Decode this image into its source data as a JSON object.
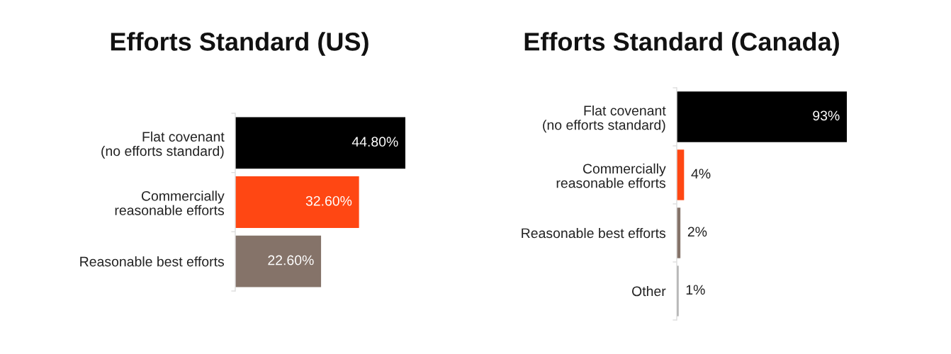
{
  "chart_data": [
    {
      "type": "bar",
      "orientation": "horizontal",
      "title": "Efforts Standard (US)",
      "categories": [
        "Flat covenant\n(no efforts standard)",
        "Commercially\nreasonable efforts",
        "Reasonable best efforts"
      ],
      "values": [
        44.8,
        32.6,
        22.6
      ],
      "value_labels": [
        "44.80%",
        "32.60%",
        "22.60%"
      ],
      "colors": [
        "#000000",
        "#ff4713",
        "#857369"
      ],
      "tick_labels": "y"
    },
    {
      "type": "bar",
      "orientation": "horizontal",
      "title": "Efforts Standard (Canada)",
      "categories": [
        "Flat covenant\n(no efforts standard)",
        "Commercially\nreasonable efforts",
        "Reasonable best efforts",
        "Other"
      ],
      "values": [
        93,
        4,
        2,
        1
      ],
      "value_labels": [
        "93%",
        "4%",
        "2%",
        "1%"
      ],
      "colors": [
        "#000000",
        "#ff4713",
        "#857369",
        "#a8a8a8"
      ],
      "tick_labels": "y"
    }
  ]
}
